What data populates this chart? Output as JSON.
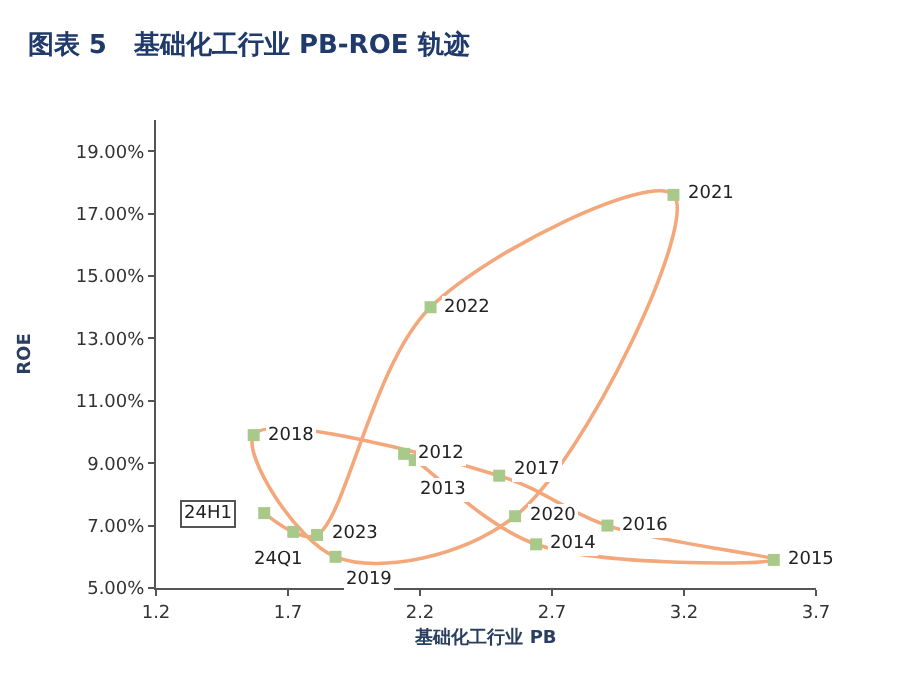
{
  "chart_data": {
    "type": "line",
    "title": "图表 5   基础化工行业 PB-ROE 轨迹",
    "xlabel": "基础化工行业 PB",
    "ylabel": "ROE",
    "series": [
      {
        "color": "#f4a77a",
        "colors": [
          "#a9c98a",
          "#a9c98a",
          "#a9c98a",
          "#a9c98a",
          "#a9c98a",
          "#a9c98a",
          "#a9c98a",
          "#a9c98a",
          "#a9c98a",
          "#a9c98a",
          "#a9c98a",
          "#a9c98a",
          "#a9c98a",
          "#a9c98a"
        ],
        "x": [
          2.14,
          2.18,
          2.64,
          3.54,
          2.91,
          2.5,
          1.57,
          1.88,
          2.56,
          3.16,
          2.24,
          1.81,
          1.72,
          1.61
        ],
        "values": [
          9.3,
          9.1,
          6.4,
          5.9,
          7.0,
          8.6,
          9.9,
          6.0,
          7.3,
          17.6,
          14.0,
          6.7,
          6.8,
          7.4
        ]
      }
    ],
    "marker": "square",
    "line_style": "solid",
    "xlim": [
      1.2,
      3.7
    ],
    "xticks": [
      1.2,
      1.7,
      2.2,
      2.7,
      3.2,
      3.7
    ],
    "ylim": [
      5,
      20
    ],
    "yticks": [
      {
        "value": 5,
        "label": "5.00%"
      },
      {
        "value": 7,
        "label": "7.00%"
      },
      {
        "value": 9,
        "label": "9.00%"
      },
      {
        "value": 11,
        "label": "11.00%"
      },
      {
        "value": 13,
        "label": "13.00%"
      },
      {
        "value": 15,
        "label": "15.00%"
      },
      {
        "value": 17,
        "label": "17.00%"
      },
      {
        "value": 19,
        "label": "19.00%"
      }
    ],
    "legend": false,
    "annotations": [
      {
        "text": "2012",
        "x": 2.14,
        "y": 9.3
      },
      {
        "text": "2013",
        "x": 2.18,
        "y": 9.1
      },
      {
        "text": "2014",
        "x": 2.64,
        "y": 6.4
      },
      {
        "text": "2015",
        "x": 3.54,
        "y": 5.9
      },
      {
        "text": "2016",
        "x": 2.91,
        "y": 7.0
      },
      {
        "text": "2017",
        "x": 2.5,
        "y": 8.6
      },
      {
        "text": "2018",
        "x": 1.57,
        "y": 9.9
      },
      {
        "text": "2019",
        "x": 1.88,
        "y": 6.0
      },
      {
        "text": "2020",
        "x": 2.56,
        "y": 7.3
      },
      {
        "text": "2021",
        "x": 3.16,
        "y": 17.6
      },
      {
        "text": "2022",
        "x": 2.24,
        "y": 14.0
      },
      {
        "text": "2023",
        "x": 1.81,
        "y": 6.7
      },
      {
        "text": "24Q1",
        "x": 1.72,
        "y": 6.8
      },
      {
        "text": "24H1",
        "x": 1.61,
        "y": 7.4
      }
    ]
  }
}
